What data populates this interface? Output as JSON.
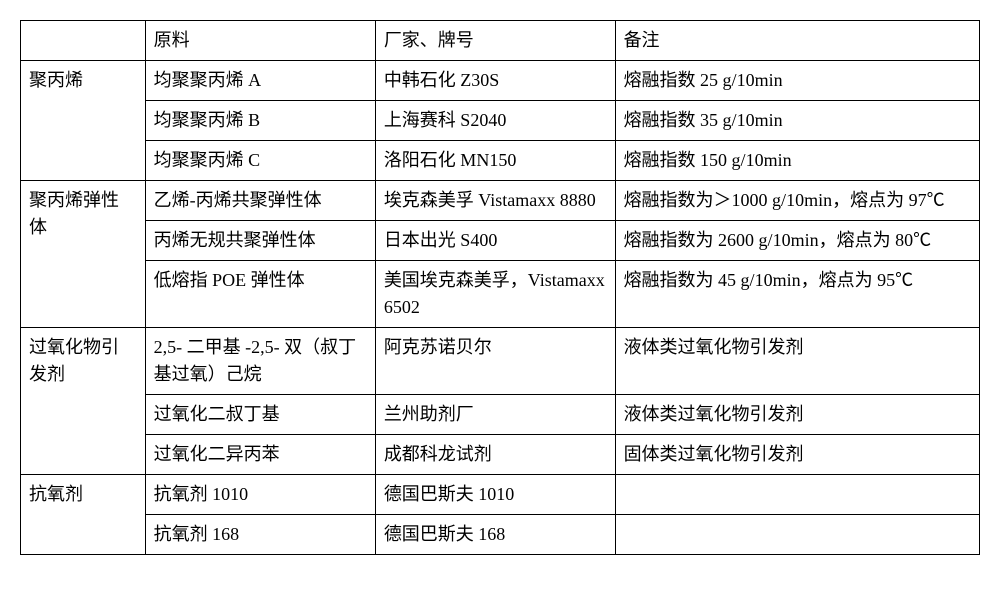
{
  "header": {
    "col0": "",
    "col1": "原料",
    "col2": "厂家、牌号",
    "col3": "备注"
  },
  "groups": [
    {
      "label": "聚丙烯",
      "rows": [
        {
          "c1": "均聚聚丙烯 A",
          "c2": "中韩石化 Z30S",
          "c3": "熔融指数 25 g/10min"
        },
        {
          "c1": "均聚聚丙烯 B",
          "c2": "上海赛科 S2040",
          "c3": "熔融指数 35 g/10min"
        },
        {
          "c1": "均聚聚丙烯 C",
          "c2": "洛阳石化 MN150",
          "c3": "熔融指数 150 g/10min"
        }
      ]
    },
    {
      "label": "聚丙烯弹性体",
      "rows": [
        {
          "c1": "乙烯-丙烯共聚弹性体",
          "c2": "埃克森美孚 Vistamaxx 8880",
          "c3": "熔融指数为＞1000 g/10min，熔点为 97℃"
        },
        {
          "c1": "丙烯无规共聚弹性体",
          "c2": "日本出光 S400",
          "c3": "熔融指数为 2600 g/10min，熔点为 80℃"
        },
        {
          "c1": "低熔指 POE 弹性体",
          "c2": "美国埃克森美孚，Vistamaxx 6502",
          "c3": "熔融指数为 45 g/10min，熔点为 95℃"
        }
      ]
    },
    {
      "label": "过氧化物引发剂",
      "rows": [
        {
          "c1": "2,5- 二甲基 -2,5- 双（叔丁基过氧）己烷",
          "c2": "阿克苏诺贝尔",
          "c3": "液体类过氧化物引发剂"
        },
        {
          "c1": "过氧化二叔丁基",
          "c2": "兰州助剂厂",
          "c3": "液体类过氧化物引发剂"
        },
        {
          "c1": "过氧化二异丙苯",
          "c2": "成都科龙试剂",
          "c3": "固体类过氧化物引发剂"
        }
      ]
    },
    {
      "label": "抗氧剂",
      "rows": [
        {
          "c1": "抗氧剂 1010",
          "c2": "德国巴斯夫 1010",
          "c3": ""
        },
        {
          "c1": "抗氧剂 168",
          "c2": "德国巴斯夫 168",
          "c3": ""
        }
      ]
    }
  ]
}
